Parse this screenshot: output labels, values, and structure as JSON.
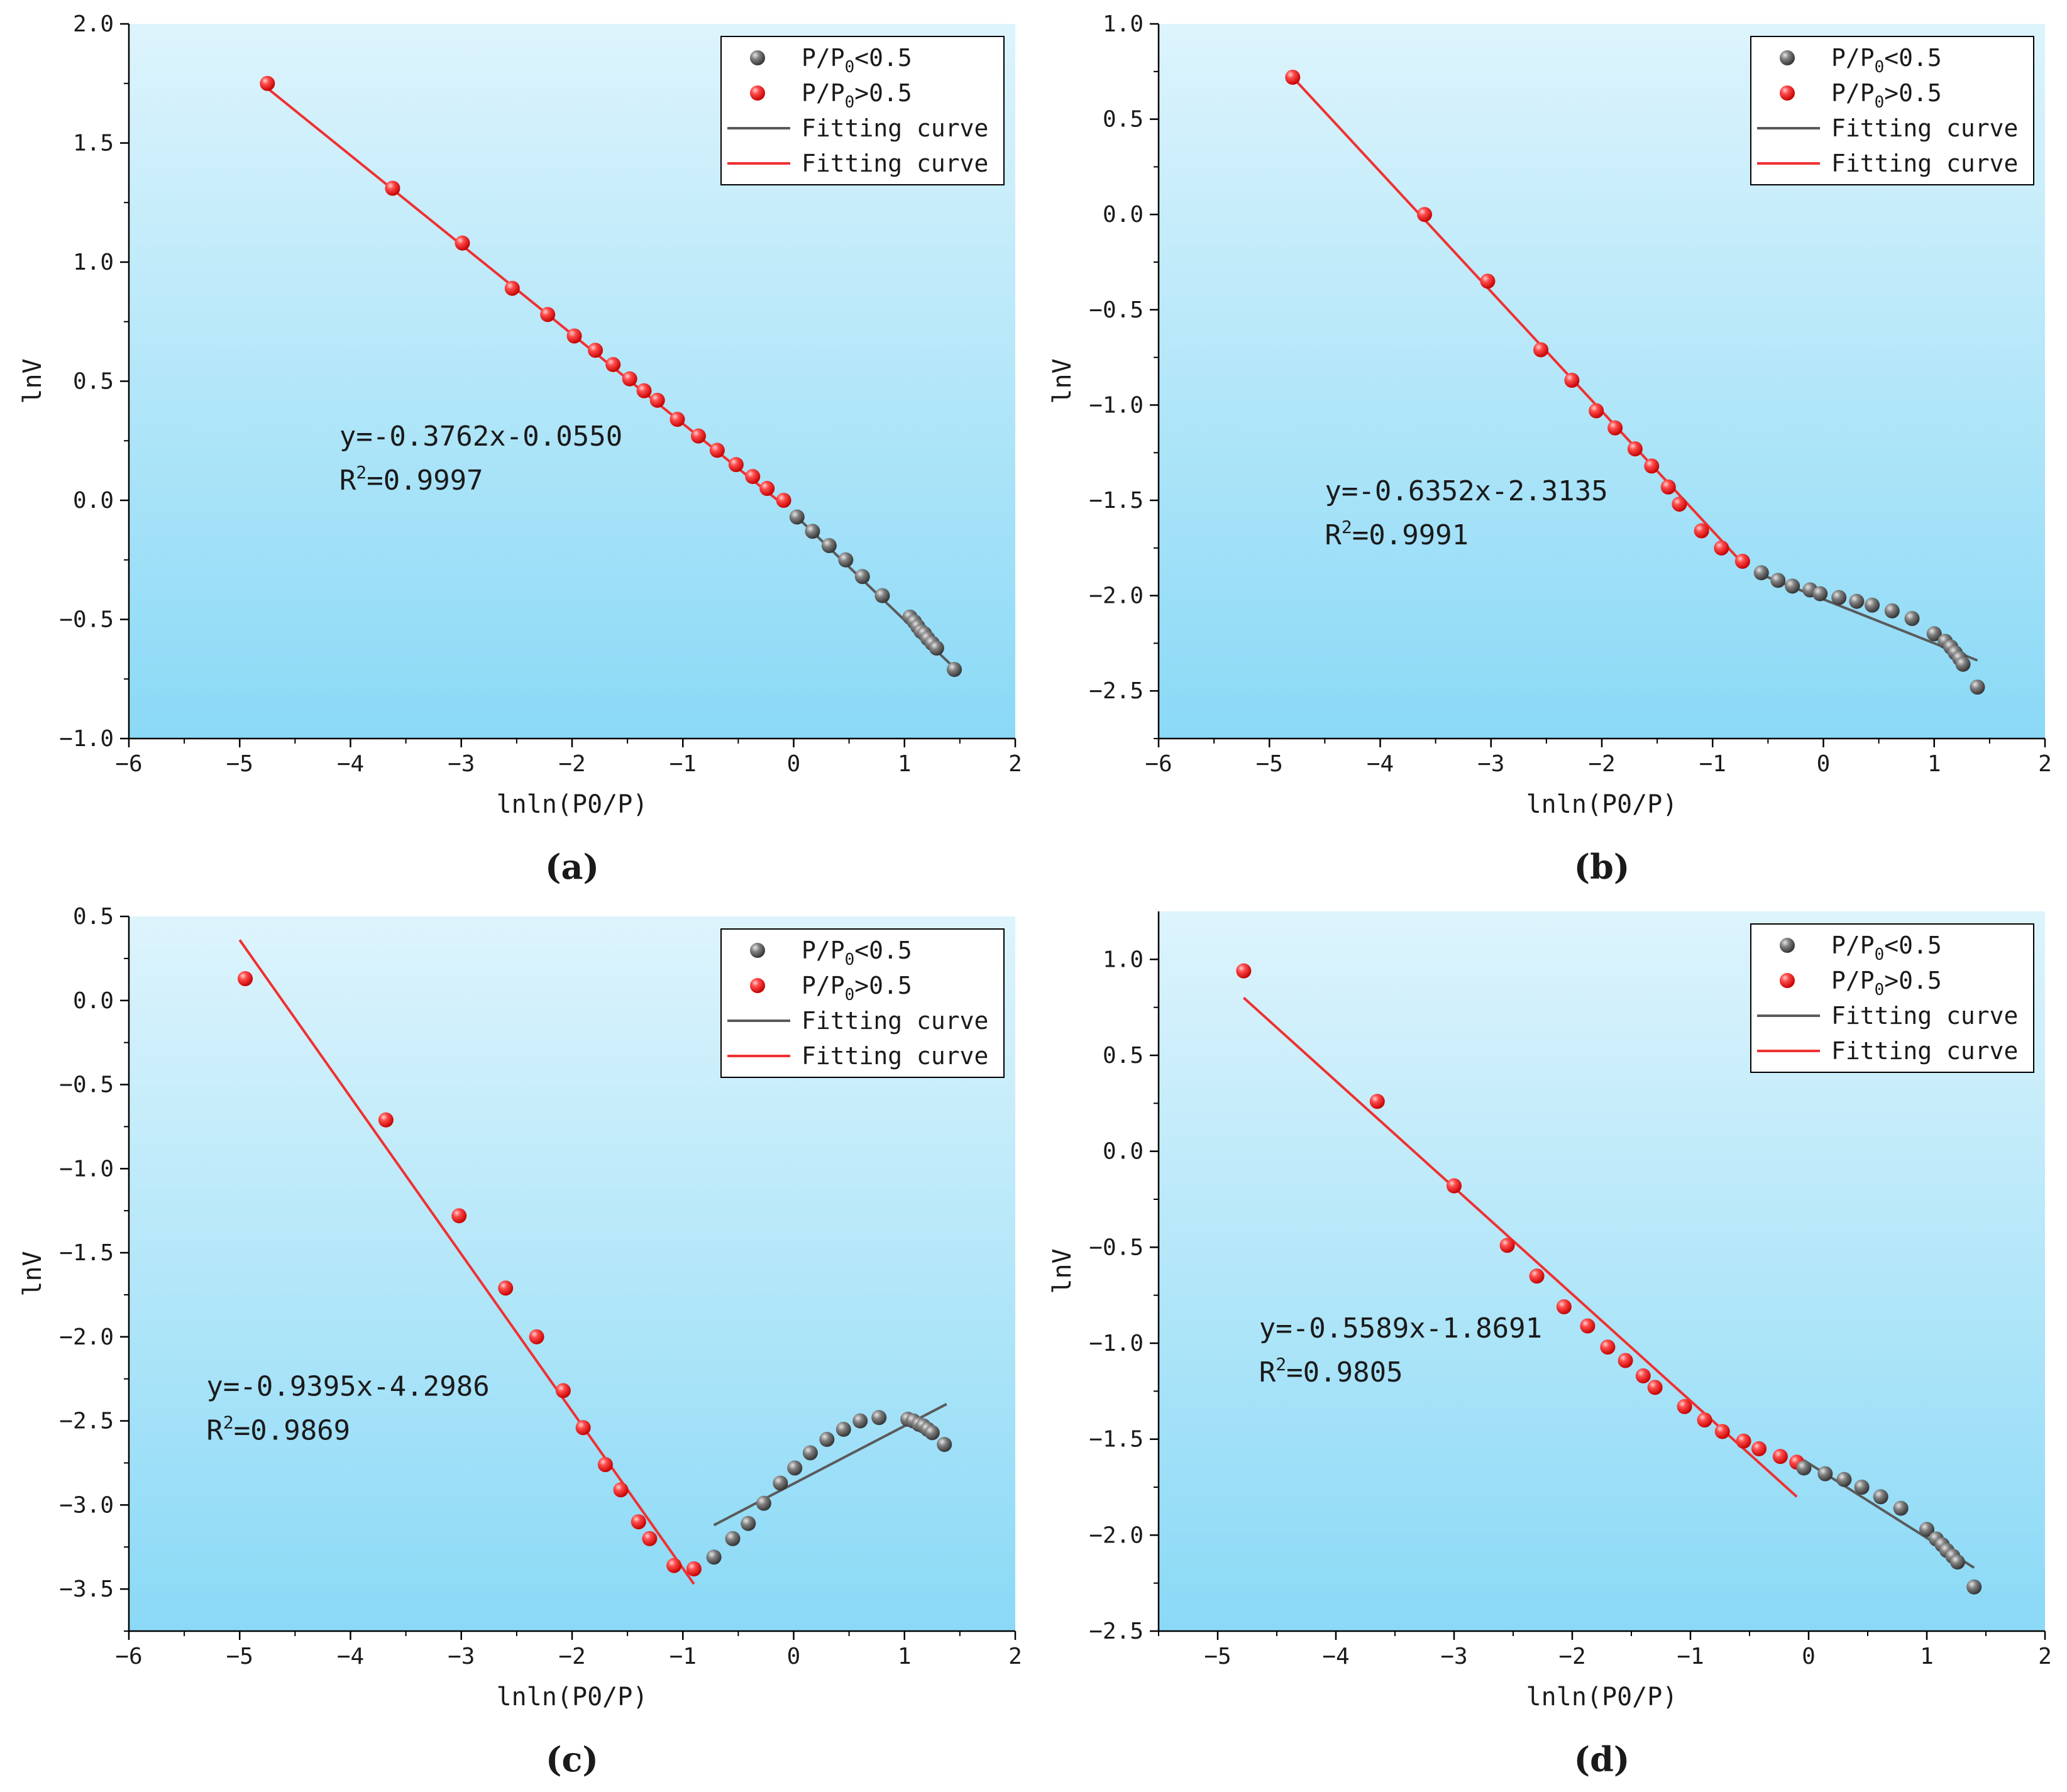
{
  "figure": {
    "colors": {
      "background_top": "#ddf4fc",
      "background_bottom": "#8ad9f6",
      "low_series": "#6e6e6e",
      "high_series": "#ff2a2a",
      "low_fit": "#5a5a5a",
      "high_fit": "#f03030"
    }
  },
  "chart_data": [
    {
      "id": "a",
      "type": "scatter",
      "panel_label": "(a)",
      "xlabel": "lnln(P0/P)",
      "ylabel": "lnV",
      "xlim": [
        -6,
        2
      ],
      "ylim": [
        -1.0,
        2.0
      ],
      "xticks": [
        -6,
        -5,
        -4,
        -3,
        -2,
        -1,
        0,
        1,
        2
      ],
      "xtick_labels": [
        "−6",
        "−5",
        "−4",
        "−3",
        "−2",
        "−1",
        "0",
        "1",
        "2"
      ],
      "yticks": [
        -1.0,
        -0.5,
        0.0,
        0.5,
        1.0,
        1.5,
        2.0
      ],
      "ytick_labels": [
        "−1.0",
        "−0.5",
        "0.0",
        "0.5",
        "1.0",
        "1.5",
        "2.0"
      ],
      "legend": [
        {
          "label_main": "P/P",
          "label_sub": "0",
          "label_tail": "<0.5",
          "kind": "marker",
          "series": "low"
        },
        {
          "label_main": "P/P",
          "label_sub": "0",
          "label_tail": ">0.5",
          "kind": "marker",
          "series": "high"
        },
        {
          "label_main": "Fitting curve",
          "kind": "line",
          "series": "low"
        },
        {
          "label_main": "Fitting curve",
          "kind": "line",
          "series": "high"
        }
      ],
      "annotation": {
        "equation": "y=-0.3762x-0.0550",
        "r2_label": "R",
        "r2_sup": "2",
        "r2_value": "=0.9997",
        "x": -4.1,
        "y": 0.23
      },
      "series": [
        {
          "name": "P/P0>0.5",
          "role": "high",
          "x": [
            -4.75,
            -3.62,
            -2.99,
            -2.54,
            -2.22,
            -1.98,
            -1.79,
            -1.63,
            -1.48,
            -1.35,
            -1.23,
            -1.05,
            -0.86,
            -0.69,
            -0.52,
            -0.37,
            -0.24,
            -0.09
          ],
          "y": [
            1.75,
            1.31,
            1.08,
            0.89,
            0.78,
            0.69,
            0.63,
            0.57,
            0.51,
            0.46,
            0.42,
            0.34,
            0.27,
            0.21,
            0.15,
            0.1,
            0.05,
            0.0
          ]
        },
        {
          "name": "P/P0<0.5",
          "role": "low",
          "x": [
            0.03,
            0.17,
            0.32,
            0.47,
            0.62,
            0.8,
            1.05,
            1.09,
            1.12,
            1.15,
            1.18,
            1.21,
            1.25,
            1.29,
            1.45
          ],
          "y": [
            -0.07,
            -0.13,
            -0.19,
            -0.25,
            -0.32,
            -0.4,
            -0.49,
            -0.51,
            -0.53,
            -0.55,
            -0.56,
            -0.58,
            -0.6,
            -0.62,
            -0.71
          ]
        }
      ],
      "fits": [
        {
          "role": "high",
          "x": [
            -4.75,
            -0.09
          ],
          "y": [
            1.73,
            -0.02
          ]
        },
        {
          "role": "low",
          "x": [
            0.03,
            1.42
          ],
          "y": [
            -0.07,
            -0.69
          ]
        }
      ]
    },
    {
      "id": "b",
      "type": "scatter",
      "panel_label": "(b)",
      "xlabel": "lnln(P0/P)",
      "ylabel": "lnV",
      "xlim": [
        -6,
        2
      ],
      "ylim": [
        -2.75,
        1.0
      ],
      "xticks": [
        -6,
        -5,
        -4,
        -3,
        -2,
        -1,
        0,
        1,
        2
      ],
      "xtick_labels": [
        "−6",
        "−5",
        "−4",
        "−3",
        "−2",
        "−1",
        "0",
        "1",
        "2"
      ],
      "yticks": [
        -2.5,
        -2.0,
        -1.5,
        -1.0,
        -0.5,
        0.0,
        0.5,
        1.0
      ],
      "ytick_labels": [
        "−2.5",
        "−2.0",
        "−1.5",
        "−1.0",
        "−0.5",
        "0.0",
        "0.5",
        "1.0"
      ],
      "legend": [
        {
          "label_main": "P/P",
          "label_sub": "0",
          "label_tail": "<0.5",
          "kind": "marker",
          "series": "low"
        },
        {
          "label_main": "P/P",
          "label_sub": "0",
          "label_tail": ">0.5",
          "kind": "marker",
          "series": "high"
        },
        {
          "label_main": "Fitting curve",
          "kind": "line",
          "series": "low"
        },
        {
          "label_main": "Fitting curve",
          "kind": "line",
          "series": "high"
        }
      ],
      "annotation": {
        "equation": "y=-0.6352x-2.3135",
        "r2_label": "R",
        "r2_sup": "2",
        "r2_value": "=0.9991",
        "x": -4.5,
        "y": -1.5
      },
      "series": [
        {
          "name": "P/P0>0.5",
          "role": "high",
          "x": [
            -4.79,
            -3.6,
            -3.03,
            -2.55,
            -2.27,
            -2.05,
            -1.88,
            -1.7,
            -1.55,
            -1.4,
            -1.3,
            -1.1,
            -0.92,
            -0.73
          ],
          "y": [
            0.72,
            0.0,
            -0.35,
            -0.71,
            -0.87,
            -1.03,
            -1.12,
            -1.23,
            -1.32,
            -1.43,
            -1.52,
            -1.66,
            -1.75,
            -1.82
          ]
        },
        {
          "name": "P/P0<0.5",
          "role": "low",
          "x": [
            -0.56,
            -0.41,
            -0.28,
            -0.12,
            -0.03,
            0.14,
            0.3,
            0.44,
            0.62,
            0.8,
            1.0,
            1.1,
            1.15,
            1.19,
            1.23,
            1.26,
            1.39
          ],
          "y": [
            -1.88,
            -1.92,
            -1.95,
            -1.97,
            -1.99,
            -2.01,
            -2.03,
            -2.05,
            -2.08,
            -2.12,
            -2.2,
            -2.24,
            -2.27,
            -2.3,
            -2.33,
            -2.36,
            -2.48
          ]
        },
        {
          "name": "fit-low",
          "role": "fit-low",
          "x": [
            -0.56,
            1.39
          ],
          "y": [
            -1.89,
            -2.34
          ]
        }
      ],
      "fits": [
        {
          "role": "high",
          "x": [
            -4.79,
            -0.73
          ],
          "y": [
            0.72,
            -1.83
          ]
        },
        {
          "role": "low",
          "x": [
            -0.56,
            1.39
          ],
          "y": [
            -1.89,
            -2.34
          ]
        }
      ]
    },
    {
      "id": "c",
      "type": "scatter",
      "panel_label": "(c)",
      "xlabel": "lnln(P0/P)",
      "ylabel": "lnV",
      "xlim": [
        -6,
        2
      ],
      "ylim": [
        -3.75,
        0.5
      ],
      "xticks": [
        -6,
        -5,
        -4,
        -3,
        -2,
        -1,
        0,
        1,
        2
      ],
      "xtick_labels": [
        "−6",
        "−5",
        "−4",
        "−3",
        "−2",
        "−1",
        "0",
        "1",
        "2"
      ],
      "yticks": [
        -3.5,
        -3.0,
        -2.5,
        -2.0,
        -1.5,
        -1.0,
        -0.5,
        0.0,
        0.5
      ],
      "ytick_labels": [
        "−3.5",
        "−3.0",
        "−2.5",
        "−2.0",
        "−1.5",
        "−1.0",
        "−0.5",
        "0.0",
        "0.5"
      ],
      "legend": [
        {
          "label_main": "P/P",
          "label_sub": "0",
          "label_tail": "<0.5",
          "kind": "marker",
          "series": "low"
        },
        {
          "label_main": "P/P",
          "label_sub": "0",
          "label_tail": ">0.5",
          "kind": "marker",
          "series": "high"
        },
        {
          "label_main": "Fitting curve",
          "kind": "line",
          "series": "low"
        },
        {
          "label_main": "Fitting curve",
          "kind": "line",
          "series": "high"
        }
      ],
      "annotation": {
        "equation": "y=-0.9395x-4.2986",
        "r2_label": "R",
        "r2_sup": "2",
        "r2_value": "=0.9869",
        "x": -5.3,
        "y": -2.35
      },
      "series": [
        {
          "name": "P/P0>0.5",
          "role": "high",
          "x": [
            -4.95,
            -3.68,
            -3.02,
            -2.6,
            -2.32,
            -2.08,
            -1.9,
            -1.7,
            -1.56,
            -1.4,
            -1.3,
            -1.08,
            -0.9
          ],
          "y": [
            0.13,
            -0.71,
            -1.28,
            -1.71,
            -2.0,
            -2.32,
            -2.54,
            -2.76,
            -2.91,
            -3.1,
            -3.2,
            -3.36,
            -3.38
          ]
        },
        {
          "name": "P/P0<0.5",
          "role": "low",
          "x": [
            -0.72,
            -0.55,
            -0.41,
            -0.27,
            -0.12,
            0.01,
            0.15,
            0.3,
            0.45,
            0.6,
            0.77,
            1.03,
            1.08,
            1.13,
            1.17,
            1.21,
            1.25,
            1.36
          ],
          "y": [
            -3.31,
            -3.2,
            -3.11,
            -2.99,
            -2.87,
            -2.78,
            -2.69,
            -2.61,
            -2.55,
            -2.5,
            -2.48,
            -2.49,
            -2.5,
            -2.52,
            -2.53,
            -2.55,
            -2.57,
            -2.64
          ]
        }
      ],
      "fits": [
        {
          "role": "high",
          "x": [
            -5.0,
            -0.9
          ],
          "y": [
            0.36,
            -3.47
          ]
        },
        {
          "role": "low",
          "x": [
            -0.72,
            1.38
          ],
          "y": [
            -3.12,
            -2.4
          ]
        }
      ]
    },
    {
      "id": "d",
      "type": "scatter",
      "panel_label": "(d)",
      "xlabel": "lnln(P0/P)",
      "ylabel": "lnV",
      "xlim": [
        -5.5,
        2
      ],
      "ylim": [
        -2.5,
        1.25
      ],
      "xticks": [
        -5,
        -4,
        -3,
        -2,
        -1,
        0,
        1,
        2
      ],
      "xtick_labels": [
        "−5",
        "−4",
        "−3",
        "−2",
        "−1",
        "0",
        "1",
        "2"
      ],
      "yticks": [
        -2.5,
        -2.0,
        -1.5,
        -1.0,
        -0.5,
        0.0,
        0.5,
        1.0
      ],
      "ytick_labels": [
        "−2.5",
        "−2.0",
        "−1.5",
        "−1.0",
        "−0.5",
        "0.0",
        "0.5",
        "1.0"
      ],
      "legend": [
        {
          "label_main": "P/P",
          "label_sub": "0",
          "label_tail": "<0.5",
          "kind": "marker",
          "series": "low"
        },
        {
          "label_main": "P/P",
          "label_sub": "0",
          "label_tail": ">0.5",
          "kind": "marker",
          "series": "high"
        },
        {
          "label_main": "Fitting curve",
          "kind": "line",
          "series": "low"
        },
        {
          "label_main": "Fitting curve",
          "kind": "line",
          "series": "high"
        }
      ],
      "annotation": {
        "equation": "y=-0.5589x-1.8691",
        "r2_label": "R",
        "r2_sup": "2",
        "r2_value": "=0.9805",
        "x": -4.65,
        "y": -0.97
      },
      "series": [
        {
          "name": "P/P0>0.5",
          "role": "high",
          "x": [
            -4.78,
            -3.65,
            -3.0,
            -2.55,
            -2.3,
            -2.07,
            -1.87,
            -1.7,
            -1.55,
            -1.4,
            -1.3,
            -1.05,
            -0.88,
            -0.73,
            -0.55,
            -0.42,
            -0.24,
            -0.1
          ],
          "y": [
            0.94,
            0.26,
            -0.18,
            -0.49,
            -0.65,
            -0.81,
            -0.91,
            -1.02,
            -1.09,
            -1.17,
            -1.23,
            -1.33,
            -1.4,
            -1.46,
            -1.51,
            -1.55,
            -1.59,
            -1.62
          ]
        },
        {
          "name": "P/P0<0.5",
          "role": "low",
          "x": [
            -0.04,
            0.14,
            0.3,
            0.45,
            0.61,
            0.78,
            1.0,
            1.08,
            1.13,
            1.17,
            1.22,
            1.26,
            1.4
          ],
          "y": [
            -1.65,
            -1.68,
            -1.71,
            -1.75,
            -1.8,
            -1.86,
            -1.97,
            -2.02,
            -2.05,
            -2.08,
            -2.11,
            -2.14,
            -2.27
          ]
        }
      ],
      "fits": [
        {
          "role": "high",
          "x": [
            -4.78,
            -0.1
          ],
          "y": [
            0.8,
            -1.8
          ]
        },
        {
          "role": "low",
          "x": [
            -0.04,
            1.4
          ],
          "y": [
            -1.61,
            -2.17
          ]
        }
      ]
    }
  ]
}
